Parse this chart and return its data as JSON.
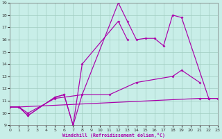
{
  "xlabel": "Windchill (Refroidissement éolien,°C)",
  "bg_color": "#c8eee8",
  "grid_color": "#a0ccc0",
  "line_color": "#aa00aa",
  "xlim": [
    0,
    23
  ],
  "ylim": [
    9,
    19
  ],
  "xticks": [
    0,
    1,
    2,
    3,
    4,
    5,
    6,
    7,
    8,
    9,
    10,
    11,
    12,
    13,
    14,
    15,
    16,
    17,
    18,
    19,
    20,
    21,
    22,
    23
  ],
  "yticks": [
    9,
    10,
    11,
    12,
    13,
    14,
    15,
    16,
    17,
    18,
    19
  ],
  "lines": [
    {
      "x": [
        0,
        1,
        2,
        5,
        6,
        7,
        8,
        12,
        13,
        14,
        15,
        16,
        17,
        18,
        19,
        22,
        23
      ],
      "y": [
        10.5,
        10.5,
        9.8,
        11.3,
        11.5,
        9.0,
        11.5,
        19.0,
        17.5,
        16.0,
        16.1,
        16.1,
        15.5,
        18.0,
        17.8,
        11.2,
        11.2
      ]
    },
    {
      "x": [
        0,
        1,
        2,
        5,
        6,
        7,
        8,
        12,
        13
      ],
      "y": [
        10.5,
        10.5,
        9.8,
        11.3,
        11.5,
        9.0,
        14.0,
        17.5,
        16.0
      ]
    },
    {
      "x": [
        0,
        1,
        2,
        5,
        8,
        11,
        14,
        18,
        19,
        21
      ],
      "y": [
        10.5,
        10.5,
        10.0,
        11.2,
        11.5,
        11.5,
        12.5,
        13.0,
        13.5,
        12.5
      ]
    },
    {
      "x": [
        0,
        1,
        21,
        22,
        23
      ],
      "y": [
        10.5,
        10.5,
        11.2,
        11.2,
        11.2
      ]
    }
  ]
}
